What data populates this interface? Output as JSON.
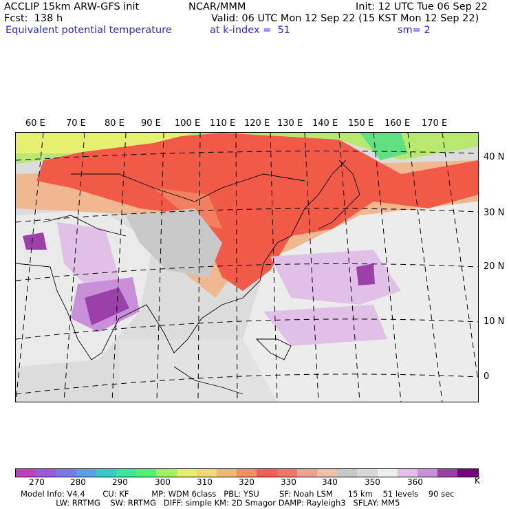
{
  "header": {
    "model": "ACCLIP 15km ARW-GFS init",
    "org": "NCAR/MMM",
    "init": "Init: 12 UTC Tue 06 Sep 22",
    "fcst": "Fcst:  138 h",
    "valid": "Valid: 06 UTC Mon 12 Sep 22 (15 KST Mon 12 Sep 22)",
    "field": "Equivalent potential temperature",
    "level": "at k-index =  51",
    "smooth": "sm= 2"
  },
  "longitude_labels": [
    "60 E",
    "70 E",
    "80 E",
    "90 E",
    "100 E",
    "110 E",
    "120 E",
    "130 E",
    "140 E",
    "150 E",
    "160 E",
    "170 E"
  ],
  "latitude_labels": [
    "40 N",
    "30 N",
    "20 N",
    "10 N",
    "0"
  ],
  "colorbar": {
    "colors": [
      "#c040c0",
      "#9a5ad8",
      "#7a7ae6",
      "#5aa0e6",
      "#3ac8c8",
      "#3ae69a",
      "#50f070",
      "#a0f060",
      "#e6f070",
      "#f0d878",
      "#f0b870",
      "#f09060",
      "#f06050",
      "#f07860",
      "#f0a090",
      "#f0c0a8",
      "#c8c8c8",
      "#d8d8d8",
      "#eeeeee",
      "#e0c0e6",
      "#c890d8",
      "#9a40a8",
      "#780080"
    ],
    "ticks": [
      "270",
      "280",
      "290",
      "300",
      "310",
      "320",
      "330",
      "340",
      "350",
      "360"
    ],
    "unit": "K"
  },
  "footer": {
    "line1": "Model Info: V4.4       CU: KF         MP: WDM 6class   PBL: YSU        SF: Noah LSM      15 km    51 levels    90 sec",
    "line2": "              LW: RRTMG    SW: RRTMG   DIFF: simple KM: 2D Smagor DAMP: Rayleigh3   SFLAY: MM5"
  }
}
